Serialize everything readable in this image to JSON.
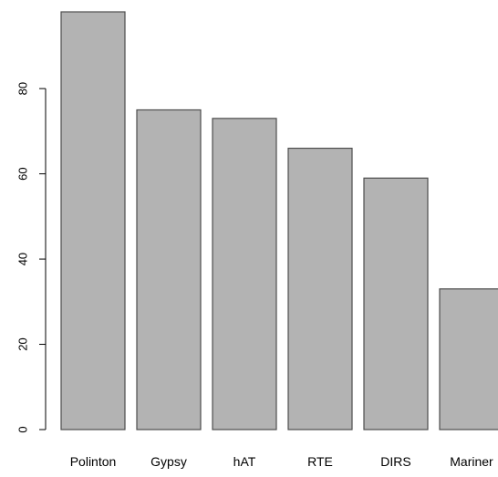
{
  "chart_data": {
    "type": "bar",
    "title": "",
    "xlabel": "",
    "ylabel": "",
    "categories": [
      "Polinton",
      "Gypsy",
      "hAT",
      "RTE",
      "DIRS",
      "Mariner"
    ],
    "values": [
      98,
      75,
      73,
      66,
      59,
      33
    ],
    "ylim": [
      0,
      98
    ],
    "yticks": [
      "0",
      "20",
      "40",
      "60",
      "80"
    ],
    "grid": false,
    "legend": "none",
    "bar_color": "#b3b3b3",
    "bar_border_color": "#4d4d4d"
  }
}
